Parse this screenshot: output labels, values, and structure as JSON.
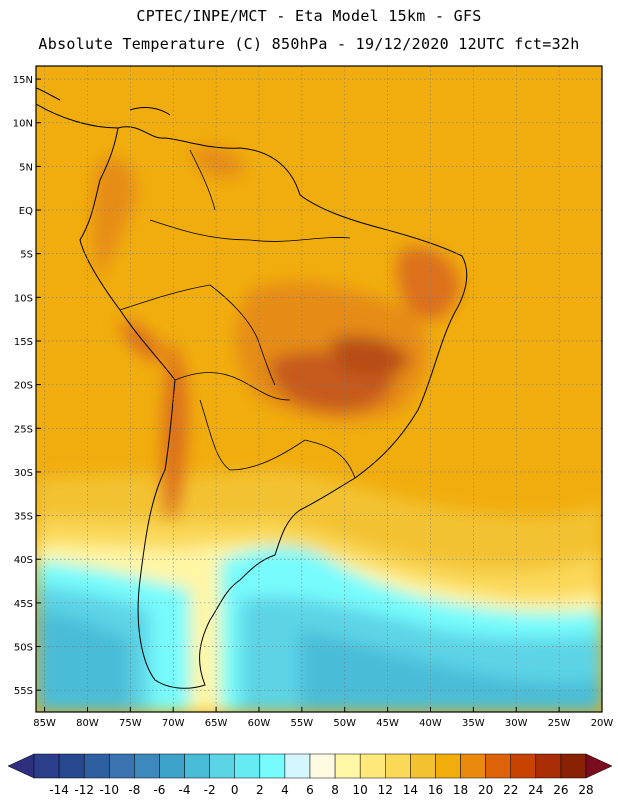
{
  "header": {
    "line1": "CPTEC/INPE/MCT -  Eta Model 15km - GFS",
    "line2": "Absolute Temperature (C) 850hPa - 19/12/2020 12UTC fct=32h"
  },
  "map": {
    "lat_labels": [
      "15N",
      "10N",
      "5N",
      "EQ",
      "5S",
      "10S",
      "15S",
      "20S",
      "25S",
      "30S",
      "35S",
      "40S",
      "45S",
      "50S",
      "55S"
    ],
    "lon_labels": [
      "85W",
      "80W",
      "75W",
      "70W",
      "65W",
      "60W",
      "55W",
      "50W",
      "45W",
      "40W",
      "35W",
      "30W",
      "25W",
      "20W"
    ],
    "lat_values": [
      15,
      10,
      5,
      0,
      -5,
      -10,
      -15,
      -20,
      -25,
      -30,
      -35,
      -40,
      -45,
      -50,
      -55
    ],
    "lon_values": [
      -85,
      -80,
      -75,
      -70,
      -65,
      -60,
      -55,
      -50,
      -45,
      -40,
      -35,
      -30,
      -25,
      -20
    ],
    "lat_range": [
      -57.5,
      16.5
    ],
    "lon_range": [
      -86,
      -20
    ]
  },
  "legend": {
    "labels": [
      "-14",
      "-12",
      "-10",
      "-8",
      "-6",
      "-4",
      "-2",
      "0",
      "2",
      "4",
      "6",
      "8",
      "10",
      "12",
      "14",
      "16",
      "18",
      "20",
      "22",
      "24",
      "26",
      "28"
    ],
    "colors": [
      "#2a3e8c",
      "#27488f",
      "#2e5fa1",
      "#3b72b0",
      "#3d89bd",
      "#3ea3c8",
      "#48bdd8",
      "#5bd4e6",
      "#66ebf2",
      "#77fbfc",
      "#d4f7ff",
      "#fffbe2",
      "#fff6a6",
      "#ffe97b",
      "#fad858",
      "#f3c230",
      "#f0ad0c",
      "#e98a0e",
      "#dd620a",
      "#c84300",
      "#a92d05",
      "#892104"
    ],
    "low_arrow_color": "#2f2f80",
    "high_arrow_color": "#7b0c1e"
  },
  "colors": {
    "warm_base": "#f1ad0d",
    "hot": "#e68c16",
    "very_hot": "#dc6f1c",
    "extreme": "#c65a1a",
    "coastline": "#000000"
  }
}
